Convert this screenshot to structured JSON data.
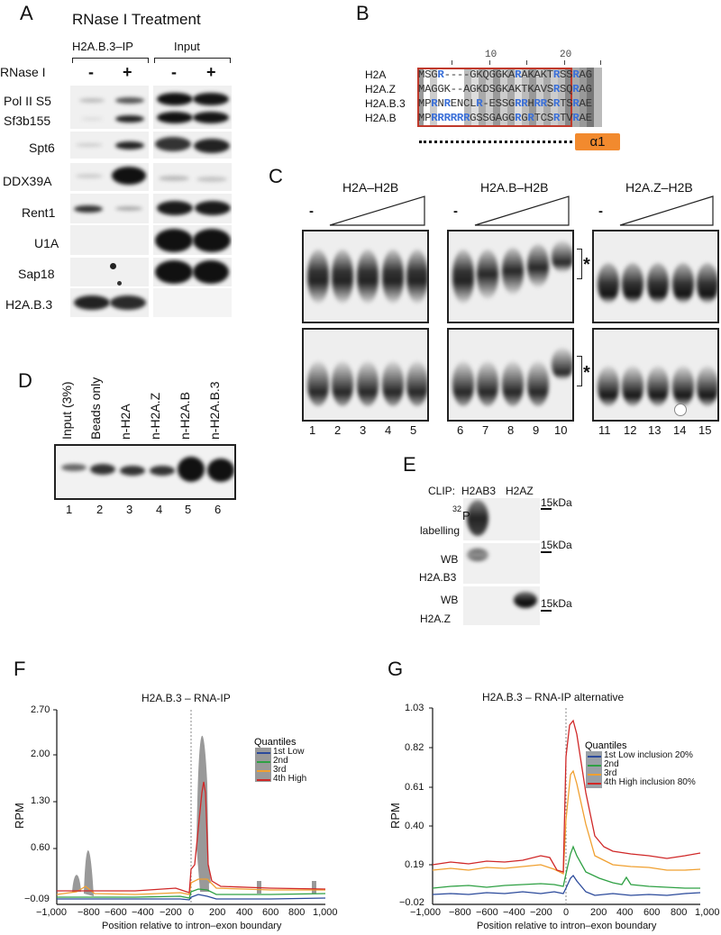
{
  "panels": {
    "A": {
      "label": "A",
      "title": "RNase I Treatment",
      "group_ip": "H2A.B.3–IP",
      "group_input": "Input",
      "row_label": "RNase I",
      "conditions": [
        "-",
        "+",
        "-",
        "+"
      ],
      "proteins": [
        "Pol II S5",
        "Sf3b155",
        "Spt6",
        "DDX39A",
        "Rent1",
        "U1A",
        "Sap18",
        "H2A.B.3"
      ]
    },
    "B": {
      "label": "B",
      "ruler": [
        "10",
        "20"
      ],
      "sequences": [
        {
          "name": "H2A",
          "seq": "MSGR----GKQGGKARAKAKTRSSRAG"
        },
        {
          "name": "H2A.Z",
          "seq": "MAGGK--AGKDSGKAKTKAVSRSQRAG"
        },
        {
          "name": "H2A.B.3",
          "seq": "MPRNRENCLR-ESSGRRHRRSRTSRAE"
        },
        {
          "name": "H2A.B",
          "seq": "MPRRRRRRGSSGAGGRGRTCSRTVRAE"
        }
      ],
      "helix_label": "α1",
      "colors": {
        "arginine": "#3a6fd8",
        "box": "#c0392b",
        "helix": "#f28a2e"
      }
    },
    "C": {
      "label": "C",
      "groups": [
        {
          "title": "H2A–H2B",
          "minus": "-",
          "lanes": [
            "1",
            "2",
            "3",
            "4",
            "5"
          ]
        },
        {
          "title": "H2A.B–H2B",
          "minus": "-",
          "lanes": [
            "6",
            "7",
            "8",
            "9",
            "10"
          ]
        },
        {
          "title": "H2A.Z–H2B",
          "minus": "-",
          "lanes": [
            "11",
            "12",
            "13",
            "14",
            "15"
          ]
        }
      ],
      "asterisk": "*"
    },
    "D": {
      "label": "D",
      "lanes": [
        {
          "label": "Input (3%)",
          "num": "1"
        },
        {
          "label": "Beads only",
          "num": "2"
        },
        {
          "label": "n-H2A",
          "num": "3"
        },
        {
          "label": "n-H2A.Z",
          "num": "4"
        },
        {
          "label": "n-H2A.B",
          "num": "5"
        },
        {
          "label": "n-H2A.B.3",
          "num": "6"
        }
      ]
    },
    "E": {
      "label": "E",
      "clip_label": "CLIP:",
      "columns": [
        "H2AB3",
        "H2AZ"
      ],
      "rows": [
        {
          "line1": "32",
          "line1b": "P",
          "line2": "labelling",
          "marker": "15kDa"
        },
        {
          "line1": "WB",
          "line2": "H2A.B3",
          "marker": "15kDa"
        },
        {
          "line1": "WB",
          "line2": "H2A.Z",
          "marker": "15kDa"
        }
      ]
    },
    "F": {
      "label": "F"
    },
    "G": {
      "label": "G"
    }
  },
  "chart_data": [
    {
      "type": "line",
      "title": "H2A.B.3 – RNA-IP",
      "xlabel": "Position relative to intron–exon boundary",
      "ylabel": "RPM",
      "x_ticks": [
        "−1,000",
        "−800",
        "−600",
        "−400",
        "−200",
        "0",
        "200",
        "400",
        "600",
        "800",
        "1,000"
      ],
      "y_ticks": [
        "−0.09",
        "0.60",
        "1.30",
        "2.00",
        "2.70"
      ],
      "xlim": [
        -1000,
        1000
      ],
      "ylim": [
        -0.09,
        2.7
      ],
      "legend_title": "Quantiles",
      "legend_position": "upper right",
      "x": [
        -1000,
        -800,
        -600,
        -400,
        -200,
        -50,
        0,
        50,
        70,
        100,
        200,
        400,
        600,
        800,
        1000
      ],
      "series": [
        {
          "name": "1st Low",
          "color": "#2b4a9b",
          "values": [
            -0.02,
            -0.02,
            -0.02,
            -0.02,
            -0.02,
            -0.03,
            0.02,
            0.05,
            0.04,
            0.03,
            -0.01,
            -0.01,
            -0.01,
            -0.01,
            0.0
          ]
        },
        {
          "name": "2nd",
          "color": "#2ea043",
          "values": [
            0.0,
            0.0,
            0.0,
            0.0,
            0.01,
            -0.01,
            0.08,
            0.11,
            0.1,
            0.09,
            0.04,
            0.04,
            0.04,
            0.05,
            0.05
          ]
        },
        {
          "name": "3rd",
          "color": "#f0a030",
          "values": [
            0.04,
            0.08,
            0.05,
            0.05,
            0.06,
            0.03,
            0.2,
            0.25,
            0.26,
            0.25,
            0.11,
            0.09,
            0.08,
            0.08,
            0.08
          ]
        },
        {
          "name": "4th High",
          "color": "#d02828",
          "values": [
            0.09,
            0.08,
            0.09,
            0.1,
            0.13,
            0.05,
            0.5,
            1.6,
            1.75,
            0.3,
            0.16,
            0.13,
            0.12,
            0.12,
            0.1
          ]
        }
      ],
      "vline_x": 0
    },
    {
      "type": "line",
      "title": "H2A.B.3 – RNA-IP alternative",
      "xlabel": "Position relative to intron–exon boundary",
      "ylabel": "RPM",
      "x_ticks": [
        "−1,000",
        "−800",
        "−600",
        "−400",
        "−200",
        "0",
        "200",
        "400",
        "600",
        "800",
        "1,000"
      ],
      "y_ticks": [
        "−0.02",
        "0.19",
        "0.40",
        "0.61",
        "0.82",
        "1.03"
      ],
      "xlim": [
        -1000,
        1000
      ],
      "ylim": [
        -0.02,
        1.03
      ],
      "legend_title": "Quantiles",
      "legend_position": "upper right",
      "x": [
        -1000,
        -800,
        -600,
        -400,
        -200,
        -100,
        -30,
        0,
        40,
        100,
        200,
        300,
        400,
        600,
        800,
        1000
      ],
      "series": [
        {
          "name": "1st Low inclusion 20%",
          "color": "#2b4a9b",
          "values": [
            0.0,
            0.01,
            0.01,
            0.01,
            0.02,
            0.01,
            0.01,
            0.12,
            0.15,
            0.09,
            0.04,
            0.04,
            0.03,
            0.03,
            0.03,
            0.04
          ]
        },
        {
          "name": "2nd",
          "color": "#2ea043",
          "values": [
            0.04,
            0.06,
            0.04,
            0.05,
            0.06,
            0.06,
            0.04,
            0.26,
            0.36,
            0.24,
            0.15,
            0.1,
            0.12,
            0.08,
            0.07,
            0.05
          ]
        },
        {
          "name": "3rd",
          "color": "#f0a030",
          "values": [
            0.14,
            0.15,
            0.14,
            0.15,
            0.17,
            0.16,
            0.08,
            0.58,
            0.74,
            0.45,
            0.2,
            0.2,
            0.17,
            0.16,
            0.16,
            0.16
          ]
        },
        {
          "name": "4th High inclusion 80%",
          "color": "#d02828",
          "values": [
            0.17,
            0.19,
            0.18,
            0.19,
            0.22,
            0.2,
            0.1,
            0.8,
            0.98,
            0.6,
            0.27,
            0.23,
            0.22,
            0.2,
            0.2,
            0.21
          ]
        }
      ],
      "vline_x": 0
    }
  ]
}
